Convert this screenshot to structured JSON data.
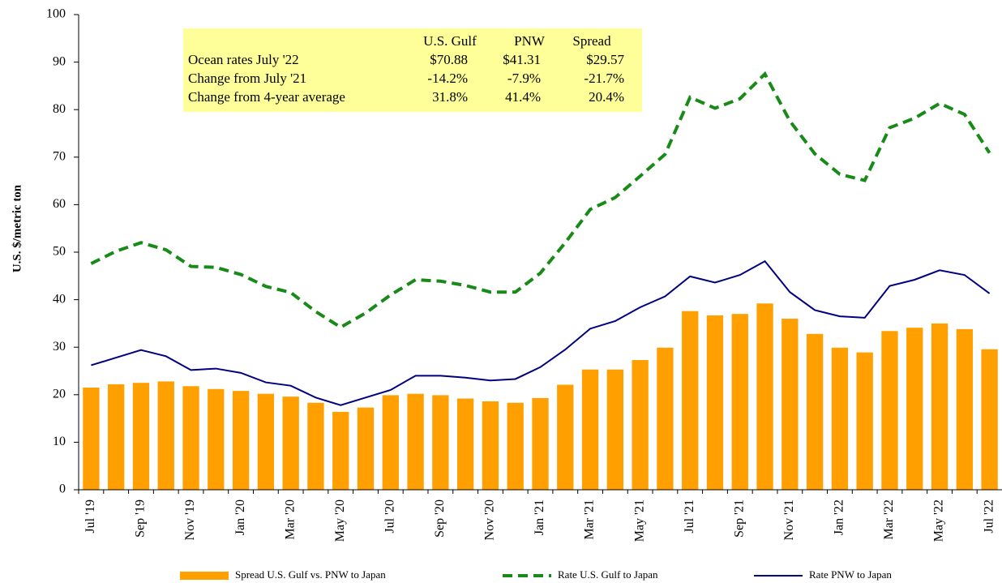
{
  "chart_data": {
    "type": "bar-line",
    "y_label": "U.S. $/metric ton",
    "categories": [
      "Jul '19",
      null,
      "Sep '19",
      null,
      "Nov '19",
      null,
      "Jan '20",
      null,
      "Mar '20",
      null,
      "May '20",
      null,
      "Jul '20",
      null,
      "Sep '20",
      null,
      "Nov '20",
      null,
      "Jan '21",
      null,
      "Mar '21",
      null,
      "May '21",
      null,
      "Jul '21",
      null,
      "Sep '21",
      null,
      "Nov '21",
      null,
      "Jan '22",
      null,
      "Mar '22",
      null,
      "May '22",
      null,
      "Jul '22"
    ],
    "series": [
      {
        "name": "Spread U.S. Gulf vs. PNW to Japan",
        "kind": "bar",
        "color": "#ffa000",
        "values": [
          21.5,
          22.2,
          22.5,
          22.8,
          21.8,
          21.2,
          20.8,
          20.2,
          19.6,
          18.3,
          16.4,
          17.3,
          19.9,
          20.2,
          19.9,
          19.2,
          18.6,
          18.3,
          19.3,
          22.1,
          25.3,
          25.3,
          27.3,
          29.9,
          37.6,
          36.7,
          37.0,
          39.2,
          36.0,
          32.8,
          29.9,
          28.9,
          33.4,
          34.1,
          35.0,
          33.8,
          29.57
        ]
      },
      {
        "name": "Rate U.S. Gulf to Japan",
        "kind": "dashed-line",
        "color": "#188a18",
        "values": [
          47.6,
          50.2,
          52.0,
          50.5,
          47.0,
          46.8,
          45.3,
          42.8,
          41.5,
          37.5,
          34.2,
          37.2,
          41.0,
          44.2,
          43.9,
          43.0,
          41.6,
          41.6,
          45.6,
          52.0,
          59.0,
          61.5,
          66.0,
          70.6,
          82.6,
          80.3,
          82.3,
          87.5,
          77.6,
          70.7,
          66.4,
          65.1,
          76.2,
          78.2,
          81.3,
          79.0,
          70.88
        ]
      },
      {
        "name": "Rate PNW to Japan",
        "kind": "line",
        "color": "#000080",
        "values": [
          26.2,
          27.8,
          29.4,
          28.1,
          25.2,
          25.5,
          24.6,
          22.6,
          21.9,
          19.4,
          17.8,
          19.4,
          21.0,
          24.0,
          24.0,
          23.6,
          23.0,
          23.3,
          25.8,
          29.5,
          33.9,
          35.5,
          38.4,
          40.7,
          44.9,
          43.6,
          45.2,
          48.1,
          41.6,
          37.8,
          36.5,
          36.2,
          42.9,
          44.2,
          46.2,
          45.2,
          41.31
        ]
      }
    ],
    "ylim": [
      0,
      100
    ],
    "yticks": [
      0,
      10,
      20,
      30,
      40,
      50,
      60,
      70,
      80,
      90,
      100
    ],
    "grid": false,
    "table": {
      "columns": [
        "U.S. Gulf",
        "PNW",
        "Spread"
      ],
      "rows": [
        {
          "label": "Ocean rates July '22",
          "values": [
            "$70.88",
            "$41.31",
            "$29.57"
          ]
        },
        {
          "label": "Change from July '21",
          "values": [
            "-14.2%",
            "-7.9%",
            "-21.7%"
          ]
        },
        {
          "label": "Change from 4-year average",
          "values": [
            "31.8%",
            "41.4%",
            "20.4%"
          ]
        }
      ]
    }
  }
}
